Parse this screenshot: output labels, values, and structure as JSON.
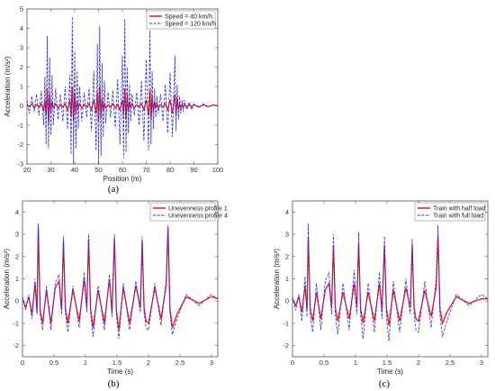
{
  "chart_data": [
    {
      "type": "line",
      "panel_label": "(a)",
      "xlabel": "Position (m)",
      "ylabel": "Acceleration (m/s²)",
      "xlim": [
        20,
        100
      ],
      "ylim": [
        -3,
        5
      ],
      "xticks": [
        20,
        30,
        40,
        50,
        60,
        70,
        80,
        90,
        100
      ],
      "yticks": [
        -3,
        -2,
        -1,
        0,
        1,
        2,
        3,
        4,
        5
      ],
      "legend_position": "top-right",
      "series": [
        {
          "name": "Speed = 40 km/h",
          "color": "#e8192c",
          "style": "solid",
          "x": [
            20,
            21,
            22,
            23,
            24,
            25,
            26,
            27,
            27.5,
            28,
            28.5,
            29,
            29.5,
            30,
            30.5,
            31,
            32,
            33,
            34,
            35,
            36,
            37,
            38,
            38.5,
            39,
            39.5,
            40,
            40.5,
            41,
            41.5,
            42,
            43,
            44,
            45,
            46,
            47,
            48,
            49,
            49.5,
            50,
            50.5,
            51,
            51.5,
            52,
            52.5,
            53,
            54,
            55,
            56,
            57,
            58,
            59,
            60,
            60.5,
            61,
            61.5,
            62,
            62.5,
            63,
            63.5,
            64,
            65,
            66,
            67,
            68,
            69,
            70,
            71,
            71.5,
            72,
            72.5,
            73,
            73.5,
            74,
            74.5,
            75,
            76,
            77,
            78,
            79,
            80,
            81,
            82,
            82.5,
            83,
            83.5,
            84,
            84.5,
            85,
            85.5,
            86,
            87,
            88,
            89,
            90,
            92,
            94,
            96,
            98,
            100
          ],
          "values": [
            0.05,
            -0.05,
            0.1,
            -0.1,
            0.05,
            -0.05,
            0.1,
            -0.2,
            0.3,
            -0.5,
            0.9,
            -0.9,
            0.6,
            -0.3,
            0.2,
            -0.1,
            0.1,
            -0.1,
            0.05,
            -0.05,
            0.1,
            -0.2,
            0.3,
            -0.5,
            1.0,
            -0.8,
            0.7,
            -0.4,
            0.2,
            -0.1,
            0.1,
            -0.1,
            0.05,
            -0.05,
            0.1,
            -0.2,
            0.3,
            -0.4,
            0.7,
            -0.8,
            1.0,
            -0.6,
            0.4,
            -0.2,
            0.1,
            -0.1,
            0.05,
            -0.05,
            0.1,
            -0.1,
            0.05,
            -0.2,
            0.3,
            -0.5,
            0.9,
            -0.7,
            0.6,
            -0.3,
            0.2,
            -0.1,
            0.1,
            -0.1,
            0.05,
            -0.05,
            0.1,
            -0.2,
            0.3,
            -0.5,
            0.8,
            -0.7,
            0.5,
            -0.3,
            0.2,
            -0.1,
            0.1,
            -0.1,
            0.05,
            -0.05,
            0.1,
            -0.2,
            0.3,
            -0.4,
            0.6,
            -0.5,
            0.4,
            -0.2,
            0.1,
            -0.1,
            0.05,
            -0.05,
            0.05,
            -0.05,
            0.05,
            -0.05,
            0.05,
            -0.05,
            0.05,
            -0.05,
            0.05,
            0.0
          ]
        },
        {
          "name": "Speed = 120 km/h",
          "color": "#2b2bdc",
          "style": "dashed",
          "x": [
            20,
            21,
            22,
            23,
            24,
            25,
            26,
            27,
            27.5,
            28,
            28.5,
            29,
            29.5,
            30,
            30.5,
            31,
            32,
            33,
            34,
            35,
            36,
            37,
            38,
            38.5,
            39,
            39.5,
            40,
            40.5,
            41,
            41.5,
            42,
            43,
            44,
            45,
            46,
            47,
            48,
            49,
            49.5,
            50,
            50.5,
            51,
            51.5,
            52,
            52.5,
            53,
            54,
            55,
            56,
            57,
            58,
            59,
            60,
            60.5,
            61,
            61.5,
            62,
            62.5,
            63,
            63.5,
            64,
            65,
            66,
            67,
            68,
            69,
            70,
            71,
            71.5,
            72,
            72.5,
            73,
            73.5,
            74,
            74.5,
            75,
            76,
            77,
            78,
            79,
            80,
            81,
            82,
            82.5,
            83,
            83.5,
            84,
            84.5,
            85,
            85.5,
            86,
            87,
            88,
            89,
            90,
            92,
            94,
            96,
            98,
            100
          ],
          "values": [
            0.3,
            -0.4,
            0.5,
            -0.3,
            0.6,
            -0.5,
            0.8,
            -1.0,
            1.5,
            -2.0,
            3.6,
            -2.2,
            2.5,
            -1.5,
            1.6,
            -1.0,
            0.9,
            -0.7,
            0.6,
            -0.8,
            1.0,
            -1.2,
            1.6,
            -2.5,
            4.6,
            -3.0,
            2.8,
            -2.2,
            1.8,
            -1.2,
            1.0,
            -0.8,
            0.7,
            -0.6,
            0.9,
            -1.3,
            1.8,
            -2.3,
            3.2,
            -3.0,
            4.1,
            -2.6,
            2.2,
            -1.6,
            1.3,
            -0.9,
            0.7,
            -0.6,
            0.8,
            -1.1,
            1.4,
            -2.0,
            2.6,
            -2.7,
            4.5,
            -2.4,
            2.0,
            -1.4,
            1.1,
            -0.8,
            0.6,
            -0.5,
            0.7,
            -1.0,
            1.3,
            -1.8,
            2.4,
            -2.3,
            3.9,
            -2.0,
            1.8,
            -1.2,
            0.9,
            -0.6,
            0.5,
            -0.4,
            0.6,
            -0.8,
            1.1,
            -1.4,
            1.7,
            -1.6,
            2.6,
            -1.3,
            1.1,
            -0.7,
            0.5,
            -0.4,
            0.3,
            -0.3,
            0.3,
            -0.2,
            0.2,
            -0.2,
            0.1,
            -0.1,
            0.1,
            -0.05,
            0.05,
            0.0
          ]
        }
      ]
    },
    {
      "type": "line",
      "panel_label": "(b)",
      "xlabel": "Time (s)",
      "ylabel": "Acceleration (m/s²)",
      "xlim": [
        0,
        3.1
      ],
      "ylim": [
        -2.5,
        4.5
      ],
      "xticks": [
        0,
        0.5,
        1,
        1.5,
        2,
        2.5,
        3
      ],
      "xtick_labels": [
        "0",
        "0.5",
        "1",
        "1.5",
        "2",
        "2.5",
        "3"
      ],
      "yticks": [
        -2,
        -1,
        0,
        1,
        2,
        3,
        4
      ],
      "legend_position": "top-right",
      "series": [
        {
          "name": "Unevenness profile 1",
          "color": "#e8192c",
          "style": "solid",
          "x": [
            0,
            0.05,
            0.1,
            0.15,
            0.2,
            0.23,
            0.25,
            0.28,
            0.32,
            0.38,
            0.45,
            0.52,
            0.58,
            0.62,
            0.65,
            0.68,
            0.72,
            0.8,
            0.9,
            0.98,
            1.02,
            1.05,
            1.08,
            1.12,
            1.2,
            1.3,
            1.38,
            1.42,
            1.46,
            1.49,
            1.53,
            1.6,
            1.7,
            1.8,
            1.87,
            1.9,
            1.93,
            1.96,
            2.0,
            2.1,
            2.2,
            2.28,
            2.31,
            2.34,
            2.38,
            2.45,
            2.6,
            2.8,
            3.0,
            3.1
          ],
          "values": [
            0.1,
            -0.3,
            0.2,
            -0.6,
            0.8,
            -0.5,
            3.3,
            -0.4,
            -1.0,
            0.5,
            -1.0,
            0.6,
            0.9,
            -0.4,
            2.7,
            -0.3,
            -1.0,
            0.5,
            -0.9,
            1.0,
            -0.3,
            2.8,
            -0.3,
            -1.2,
            0.5,
            -1.0,
            1.0,
            -0.5,
            2.8,
            -0.4,
            -1.3,
            0.6,
            -1.0,
            0.7,
            -0.3,
            2.7,
            -0.3,
            -0.9,
            -1.0,
            0.6,
            -0.8,
            0.7,
            3.3,
            -0.3,
            -1.2,
            -0.6,
            0.2,
            -0.1,
            0.2,
            0.1
          ]
        },
        {
          "name": "Unevenness profile 4",
          "color": "#2b2bdc",
          "style": "dashed",
          "x": [
            0,
            0.05,
            0.1,
            0.15,
            0.2,
            0.23,
            0.25,
            0.28,
            0.32,
            0.38,
            0.45,
            0.52,
            0.58,
            0.62,
            0.65,
            0.68,
            0.72,
            0.8,
            0.9,
            0.98,
            1.02,
            1.05,
            1.08,
            1.12,
            1.2,
            1.3,
            1.38,
            1.42,
            1.46,
            1.49,
            1.53,
            1.6,
            1.7,
            1.8,
            1.87,
            1.9,
            1.93,
            1.96,
            2.0,
            2.1,
            2.2,
            2.28,
            2.31,
            2.34,
            2.38,
            2.45,
            2.6,
            2.8,
            3.0,
            3.1
          ],
          "values": [
            0.2,
            -0.4,
            0.3,
            -0.8,
            1.0,
            -0.6,
            3.5,
            -0.6,
            -1.3,
            0.7,
            -1.3,
            0.8,
            1.2,
            -0.6,
            2.9,
            -0.5,
            -1.4,
            0.7,
            -1.2,
            1.3,
            -0.5,
            3.0,
            -0.5,
            -1.6,
            0.7,
            -1.3,
            1.2,
            -0.7,
            3.0,
            -0.6,
            -1.7,
            0.8,
            -1.3,
            0.9,
            -0.5,
            2.9,
            -0.5,
            -1.2,
            -1.3,
            0.8,
            -1.1,
            0.9,
            3.4,
            -0.5,
            -1.5,
            -0.8,
            0.3,
            -0.2,
            0.3,
            0.1
          ]
        }
      ]
    },
    {
      "type": "line",
      "panel_label": "(c)",
      "xlabel": "Time (s)",
      "ylabel": "Acceleration (m/s²)",
      "xlim": [
        0,
        3.1
      ],
      "ylim": [
        -2.5,
        4.5
      ],
      "xticks": [
        0,
        0.5,
        1,
        1.5,
        2,
        2.5,
        3
      ],
      "xtick_labels": [
        "0",
        "0.5",
        "1",
        "1.5",
        "2",
        "2.5",
        "3"
      ],
      "yticks": [
        -2,
        -1,
        0,
        1,
        2,
        3,
        4
      ],
      "legend_position": "top-right",
      "series": [
        {
          "name": "Train with half load",
          "color": "#e8192c",
          "style": "solid",
          "x": [
            0,
            0.05,
            0.1,
            0.15,
            0.2,
            0.23,
            0.25,
            0.28,
            0.32,
            0.38,
            0.45,
            0.52,
            0.58,
            0.62,
            0.65,
            0.68,
            0.72,
            0.8,
            0.9,
            0.98,
            1.02,
            1.05,
            1.08,
            1.12,
            1.2,
            1.3,
            1.38,
            1.42,
            1.46,
            1.49,
            1.53,
            1.6,
            1.7,
            1.8,
            1.87,
            1.9,
            1.93,
            1.96,
            2.0,
            2.1,
            2.2,
            2.28,
            2.31,
            2.34,
            2.38,
            2.45,
            2.6,
            2.8,
            3.0,
            3.1
          ],
          "values": [
            0.1,
            -0.2,
            0.2,
            -0.5,
            0.7,
            -0.4,
            2.9,
            -0.3,
            -0.9,
            0.4,
            -0.8,
            0.5,
            0.8,
            -0.3,
            2.5,
            -0.3,
            -0.9,
            0.4,
            -0.8,
            0.8,
            -0.3,
            2.6,
            -0.3,
            -1.0,
            0.4,
            -0.9,
            0.8,
            -0.4,
            2.5,
            -0.3,
            -1.1,
            0.5,
            -0.9,
            0.6,
            -0.3,
            2.5,
            -0.3,
            -0.8,
            -0.9,
            0.5,
            -0.7,
            0.6,
            2.9,
            -0.3,
            -1.0,
            -0.5,
            0.2,
            -0.1,
            0.1,
            0.1
          ]
        },
        {
          "name": "Train with full load",
          "color": "#2b2bdc",
          "style": "dashed",
          "x": [
            0,
            0.05,
            0.1,
            0.15,
            0.2,
            0.23,
            0.25,
            0.28,
            0.32,
            0.38,
            0.45,
            0.52,
            0.58,
            0.62,
            0.65,
            0.68,
            0.72,
            0.8,
            0.9,
            0.98,
            1.02,
            1.05,
            1.08,
            1.12,
            1.2,
            1.3,
            1.38,
            1.42,
            1.46,
            1.49,
            1.53,
            1.6,
            1.7,
            1.8,
            1.87,
            1.9,
            1.93,
            1.96,
            2.0,
            2.1,
            2.2,
            2.28,
            2.31,
            2.34,
            2.38,
            2.45,
            2.6,
            2.8,
            3.0,
            3.1
          ],
          "values": [
            0.2,
            -0.4,
            0.3,
            -0.9,
            1.1,
            -0.7,
            3.5,
            -0.6,
            -1.4,
            0.8,
            -1.3,
            0.9,
            1.3,
            -0.6,
            3.0,
            -0.6,
            -1.5,
            0.8,
            -1.3,
            1.4,
            -0.6,
            3.1,
            -0.6,
            -1.7,
            0.8,
            -1.4,
            1.3,
            -0.8,
            2.9,
            -0.7,
            -1.8,
            0.9,
            -1.4,
            1.0,
            -0.6,
            2.8,
            -0.6,
            -1.3,
            -1.4,
            0.9,
            -1.2,
            1.0,
            3.4,
            -0.6,
            -1.6,
            -0.9,
            0.3,
            -0.2,
            0.3,
            0.1
          ]
        }
      ]
    }
  ]
}
